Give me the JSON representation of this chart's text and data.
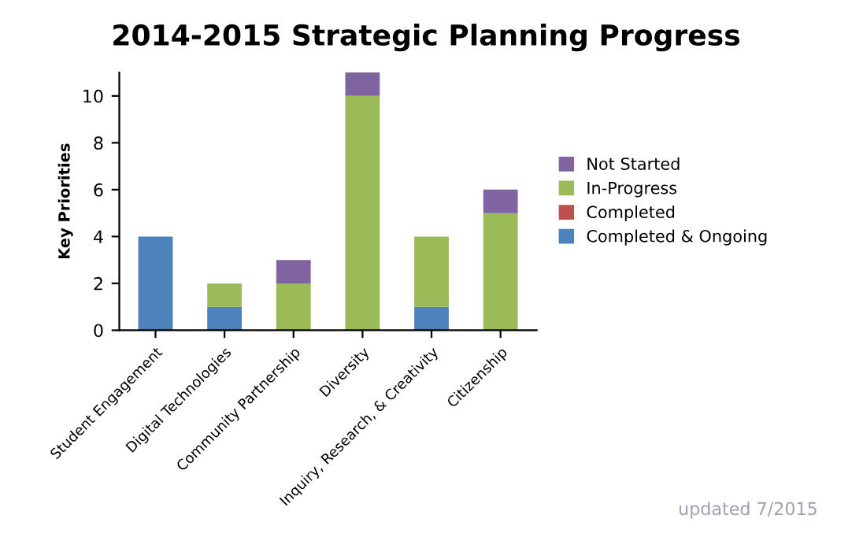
{
  "chart_data": {
    "type": "bar",
    "title": "2014-2015 Strategic Planning Progress",
    "ylabel": "Key Priorities",
    "categories": [
      "Student Engagement",
      "Digital Technologies",
      "Community Partnership",
      "Diversity",
      "Inquiry, Research, & Creativity",
      "Citizenship"
    ],
    "stacked": true,
    "ylim": [
      0,
      11
    ],
    "yticks": [
      0,
      2,
      4,
      6,
      8,
      10
    ],
    "grid": false,
    "legend": "right",
    "series": [
      {
        "name": "Completed & Ongoing",
        "color": "#4f81bd",
        "values": [
          4,
          1,
          0,
          0,
          1,
          0
        ]
      },
      {
        "name": "Completed",
        "color": "#c0504d",
        "values": [
          0,
          0,
          0,
          0,
          0,
          0
        ]
      },
      {
        "name": "In-Progress",
        "color": "#9bbb59",
        "values": [
          0,
          1,
          2,
          10,
          3,
          5
        ]
      },
      {
        "name": "Not Started",
        "color": "#8064a2",
        "values": [
          0,
          0,
          1,
          1,
          0,
          1
        ]
      }
    ],
    "annotations": [
      "updated 7/2015"
    ]
  }
}
